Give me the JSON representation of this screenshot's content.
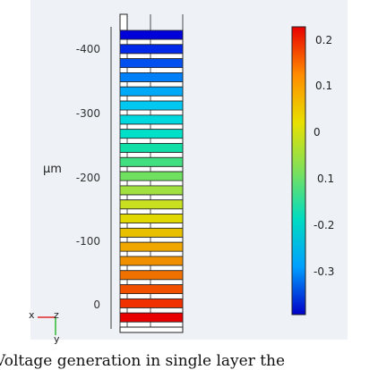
{
  "axis": {
    "unit": "μm",
    "ticks": [
      "-400",
      "-300",
      "-200",
      "-100",
      "0"
    ]
  },
  "colorbar": {
    "min": -0.4,
    "max": 0.24,
    "stops": [
      "#0000c8",
      "#00a0ff",
      "#00dcc0",
      "#7ee05a",
      "#e8e000",
      "#ff8c00",
      "#e80000"
    ],
    "left_labels": [
      "0.2",
      "0",
      "-0.2"
    ],
    "right_labels": [
      "0.1",
      "0.1",
      "-0.3"
    ]
  },
  "stack": {
    "layers": 21,
    "colors": [
      "#0000d8",
      "#0028e8",
      "#0050f0",
      "#0080f8",
      "#00a8f8",
      "#00c8f0",
      "#00d8e0",
      "#00e0c8",
      "#10e0a8",
      "#40e080",
      "#70e060",
      "#a0e040",
      "#c8e020",
      "#e0d800",
      "#e8c000",
      "#f0a800",
      "#f09000",
      "#f07000",
      "#f05000",
      "#f03000",
      "#e80000"
    ]
  },
  "triad": {
    "x": "x",
    "z": "z",
    "y": "y"
  },
  "caption": "Voltage generation in single layer the"
}
